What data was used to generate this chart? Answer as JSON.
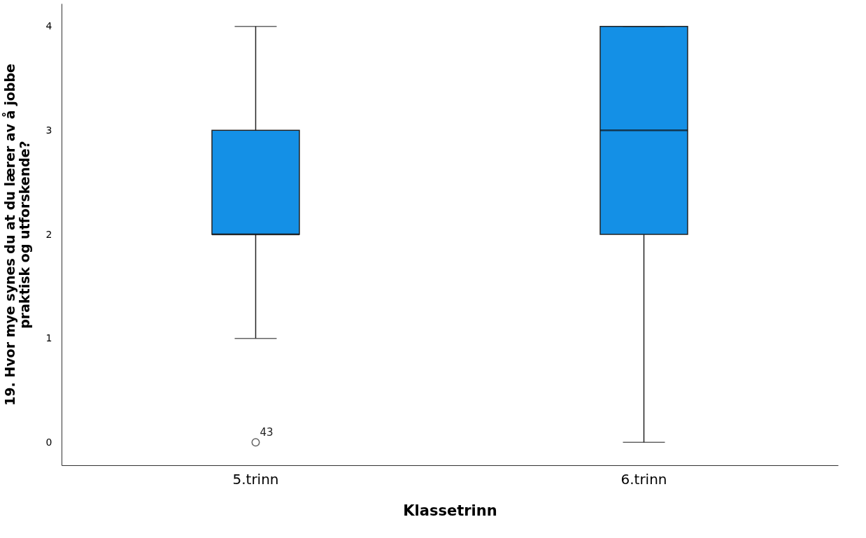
{
  "chart_data": {
    "type": "box",
    "xlabel": "Klassetrinn",
    "ylabel": "19. Hvor mye synes du at du lærer av å jobbe praktisk og utforskende?",
    "categories": [
      "5.trinn",
      "6.trinn"
    ],
    "color": "#1490e6",
    "boxes": [
      {
        "low": 1,
        "q1": 2,
        "median": 2,
        "q3": 3,
        "high": 4,
        "outliers": [
          0
        ]
      },
      {
        "low": 0,
        "q1": 2,
        "median": 3,
        "q3": 4,
        "high": 4
      }
    ],
    "ylim": [
      -0.22,
      4.22
    ],
    "yticks": [
      0,
      1,
      2,
      3,
      4
    ],
    "grid": false,
    "annotations": [
      "43"
    ]
  }
}
